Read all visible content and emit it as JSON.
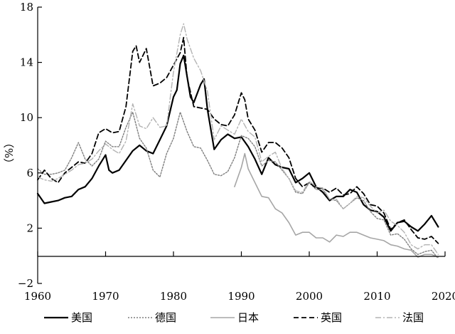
{
  "chart_data": {
    "type": "line",
    "title": "",
    "xlabel": "",
    "ylabel": "（%）",
    "xlim": [
      1960,
      2020
    ],
    "ylim": [
      -2,
      18
    ],
    "xticks": [
      "1960",
      "1970",
      "1980",
      "1990",
      "2000",
      "2010",
      "2020"
    ],
    "yticks": [
      "18",
      "14",
      "10",
      "6",
      "2",
      "−2"
    ],
    "grid": false,
    "legend_position": "bottom",
    "series": [
      {
        "name": "美国",
        "color": "#000000",
        "style": "solid",
        "width": 2.2,
        "points": [
          [
            1960,
            4.5
          ],
          [
            1961,
            3.8
          ],
          [
            1962,
            3.9
          ],
          [
            1963,
            4.0
          ],
          [
            1964,
            4.2
          ],
          [
            1965,
            4.3
          ],
          [
            1966,
            4.8
          ],
          [
            1967,
            5.0
          ],
          [
            1968,
            5.6
          ],
          [
            1969,
            6.5
          ],
          [
            1970,
            7.3
          ],
          [
            1970.5,
            6.2
          ],
          [
            1971,
            6.0
          ],
          [
            1972,
            6.2
          ],
          [
            1973,
            6.9
          ],
          [
            1974,
            7.6
          ],
          [
            1975,
            8.0
          ],
          [
            1976,
            7.6
          ],
          [
            1977,
            7.4
          ],
          [
            1978,
            8.4
          ],
          [
            1979,
            9.4
          ],
          [
            1980,
            11.5
          ],
          [
            1980.5,
            12.0
          ],
          [
            1981,
            13.9
          ],
          [
            1981.5,
            14.5
          ],
          [
            1982,
            13.0
          ],
          [
            1982.5,
            11.5
          ],
          [
            1983,
            11.1
          ],
          [
            1984,
            12.4
          ],
          [
            1984.5,
            12.8
          ],
          [
            1985,
            10.6
          ],
          [
            1986,
            7.7
          ],
          [
            1987,
            8.4
          ],
          [
            1988,
            8.8
          ],
          [
            1989,
            8.5
          ],
          [
            1990,
            8.6
          ],
          [
            1991,
            7.9
          ],
          [
            1992,
            7.0
          ],
          [
            1993,
            5.9
          ],
          [
            1994,
            7.1
          ],
          [
            1995,
            6.6
          ],
          [
            1996,
            6.4
          ],
          [
            1997,
            6.3
          ],
          [
            1998,
            5.3
          ],
          [
            1999,
            5.6
          ],
          [
            2000,
            6.0
          ],
          [
            2001,
            5.0
          ],
          [
            2002,
            4.6
          ],
          [
            2003,
            4.0
          ],
          [
            2004,
            4.3
          ],
          [
            2005,
            4.3
          ],
          [
            2006,
            4.8
          ],
          [
            2007,
            4.6
          ],
          [
            2008,
            3.7
          ],
          [
            2009,
            3.3
          ],
          [
            2010,
            3.2
          ],
          [
            2011,
            2.8
          ],
          [
            2012,
            1.8
          ],
          [
            2013,
            2.4
          ],
          [
            2014,
            2.5
          ],
          [
            2015,
            2.1
          ],
          [
            2016,
            1.8
          ],
          [
            2017,
            2.3
          ],
          [
            2018,
            2.9
          ],
          [
            2019,
            2.1
          ]
        ]
      },
      {
        "name": "德国",
        "color": "#7f7f7f",
        "style": "dotted",
        "width": 1.4,
        "points": [
          [
            1960,
            6.3
          ],
          [
            1961,
            5.9
          ],
          [
            1962,
            5.9
          ],
          [
            1963,
            6.0
          ],
          [
            1964,
            6.2
          ],
          [
            1965,
            7.1
          ],
          [
            1966,
            8.2
          ],
          [
            1967,
            7.0
          ],
          [
            1968,
            6.5
          ],
          [
            1969,
            7.0
          ],
          [
            1970,
            8.3
          ],
          [
            1971,
            7.9
          ],
          [
            1972,
            7.9
          ],
          [
            1973,
            9.3
          ],
          [
            1974,
            10.4
          ],
          [
            1975,
            8.5
          ],
          [
            1976,
            7.8
          ],
          [
            1977,
            6.2
          ],
          [
            1978,
            5.7
          ],
          [
            1979,
            7.4
          ],
          [
            1980,
            8.5
          ],
          [
            1981,
            10.4
          ],
          [
            1982,
            9.0
          ],
          [
            1983,
            7.9
          ],
          [
            1984,
            7.8
          ],
          [
            1985,
            6.9
          ],
          [
            1986,
            5.9
          ],
          [
            1987,
            5.8
          ],
          [
            1988,
            6.1
          ],
          [
            1989,
            7.1
          ],
          [
            1990,
            8.7
          ],
          [
            1991,
            8.5
          ],
          [
            1992,
            7.9
          ],
          [
            1993,
            6.5
          ],
          [
            1994,
            6.9
          ],
          [
            1995,
            6.8
          ],
          [
            1996,
            6.2
          ],
          [
            1997,
            5.6
          ],
          [
            1998,
            4.6
          ],
          [
            1999,
            4.5
          ],
          [
            2000,
            5.3
          ],
          [
            2001,
            4.8
          ],
          [
            2002,
            4.8
          ],
          [
            2003,
            4.1
          ],
          [
            2004,
            4.0
          ],
          [
            2005,
            3.4
          ],
          [
            2006,
            3.8
          ],
          [
            2007,
            4.2
          ],
          [
            2008,
            4.0
          ],
          [
            2009,
            3.2
          ],
          [
            2010,
            2.7
          ],
          [
            2011,
            2.6
          ],
          [
            2012,
            1.5
          ],
          [
            2013,
            1.6
          ],
          [
            2014,
            1.2
          ],
          [
            2015,
            0.5
          ],
          [
            2016,
            0.1
          ],
          [
            2017,
            0.3
          ],
          [
            2018,
            0.4
          ],
          [
            2019,
            -0.2
          ]
        ]
      },
      {
        "name": "日本",
        "color": "#a6a6a6",
        "style": "solid",
        "width": 1.6,
        "points": [
          [
            1989,
            5.0
          ],
          [
            1990,
            6.4
          ],
          [
            1990.5,
            7.4
          ],
          [
            1991,
            6.3
          ],
          [
            1992,
            5.3
          ],
          [
            1993,
            4.3
          ],
          [
            1994,
            4.2
          ],
          [
            1995,
            3.4
          ],
          [
            1996,
            3.1
          ],
          [
            1997,
            2.4
          ],
          [
            1998,
            1.5
          ],
          [
            1999,
            1.7
          ],
          [
            2000,
            1.7
          ],
          [
            2001,
            1.3
          ],
          [
            2002,
            1.3
          ],
          [
            2003,
            1.0
          ],
          [
            2004,
            1.5
          ],
          [
            2005,
            1.4
          ],
          [
            2006,
            1.7
          ],
          [
            2007,
            1.7
          ],
          [
            2008,
            1.5
          ],
          [
            2009,
            1.3
          ],
          [
            2010,
            1.2
          ],
          [
            2011,
            1.1
          ],
          [
            2012,
            0.8
          ],
          [
            2013,
            0.7
          ],
          [
            2014,
            0.5
          ],
          [
            2015,
            0.4
          ],
          [
            2016,
            -0.1
          ],
          [
            2017,
            0.1
          ],
          [
            2018,
            0.1
          ],
          [
            2019,
            -0.1
          ]
        ]
      },
      {
        "name": "英国",
        "color": "#000000",
        "style": "dashed",
        "width": 1.8,
        "points": [
          [
            1960,
            5.5
          ],
          [
            1961,
            6.2
          ],
          [
            1962,
            5.6
          ],
          [
            1963,
            5.3
          ],
          [
            1964,
            6.0
          ],
          [
            1965,
            6.4
          ],
          [
            1966,
            6.8
          ],
          [
            1967,
            6.7
          ],
          [
            1968,
            7.4
          ],
          [
            1969,
            8.9
          ],
          [
            1970,
            9.2
          ],
          [
            1971,
            8.9
          ],
          [
            1972,
            9.0
          ],
          [
            1973,
            10.8
          ],
          [
            1974,
            14.8
          ],
          [
            1974.5,
            15.2
          ],
          [
            1975,
            14.0
          ],
          [
            1976,
            15.0
          ],
          [
            1977,
            12.3
          ],
          [
            1978,
            12.5
          ],
          [
            1979,
            12.9
          ],
          [
            1980,
            13.8
          ],
          [
            1981,
            14.7
          ],
          [
            1981.5,
            15.8
          ],
          [
            1982,
            12.9
          ],
          [
            1983,
            10.8
          ],
          [
            1984,
            10.7
          ],
          [
            1985,
            10.6
          ],
          [
            1986,
            9.9
          ],
          [
            1987,
            9.5
          ],
          [
            1988,
            9.4
          ],
          [
            1989,
            10.2
          ],
          [
            1990,
            11.8
          ],
          [
            1990.5,
            11.3
          ],
          [
            1991,
            9.9
          ],
          [
            1992,
            9.1
          ],
          [
            1993,
            7.5
          ],
          [
            1994,
            8.2
          ],
          [
            1995,
            8.2
          ],
          [
            1996,
            7.8
          ],
          [
            1997,
            7.1
          ],
          [
            1998,
            5.6
          ],
          [
            1999,
            5.0
          ],
          [
            2000,
            5.3
          ],
          [
            2001,
            4.9
          ],
          [
            2002,
            4.9
          ],
          [
            2003,
            4.6
          ],
          [
            2004,
            4.9
          ],
          [
            2005,
            4.4
          ],
          [
            2006,
            4.5
          ],
          [
            2007,
            5.0
          ],
          [
            2008,
            4.5
          ],
          [
            2009,
            3.7
          ],
          [
            2010,
            3.6
          ],
          [
            2011,
            3.1
          ],
          [
            2012,
            1.9
          ],
          [
            2013,
            2.4
          ],
          [
            2014,
            2.6
          ],
          [
            2015,
            1.9
          ],
          [
            2016,
            1.3
          ],
          [
            2017,
            1.2
          ],
          [
            2018,
            1.4
          ],
          [
            2019,
            0.9
          ]
        ]
      },
      {
        "name": "法国",
        "color": "#b3b3b3",
        "style": "dashdot",
        "width": 1.4,
        "points": [
          [
            1960,
            5.7
          ],
          [
            1961,
            5.5
          ],
          [
            1962,
            5.4
          ],
          [
            1963,
            5.6
          ],
          [
            1964,
            5.9
          ],
          [
            1965,
            6.2
          ],
          [
            1966,
            6.6
          ],
          [
            1967,
            6.7
          ],
          [
            1968,
            7.0
          ],
          [
            1969,
            7.6
          ],
          [
            1970,
            8.1
          ],
          [
            1971,
            7.7
          ],
          [
            1972,
            7.4
          ],
          [
            1973,
            8.3
          ],
          [
            1974,
            11.0
          ],
          [
            1975,
            9.4
          ],
          [
            1976,
            9.2
          ],
          [
            1977,
            10.0
          ],
          [
            1978,
            9.3
          ],
          [
            1979,
            9.4
          ],
          [
            1980,
            13.3
          ],
          [
            1981,
            16.0
          ],
          [
            1981.5,
            16.8
          ],
          [
            1982,
            15.7
          ],
          [
            1983,
            14.3
          ],
          [
            1984,
            13.4
          ],
          [
            1985,
            11.9
          ],
          [
            1986,
            8.4
          ],
          [
            1987,
            9.4
          ],
          [
            1988,
            9.1
          ],
          [
            1989,
            8.8
          ],
          [
            1990,
            9.9
          ],
          [
            1991,
            9.0
          ],
          [
            1992,
            8.6
          ],
          [
            1993,
            6.8
          ],
          [
            1994,
            7.2
          ],
          [
            1995,
            7.5
          ],
          [
            1996,
            6.3
          ],
          [
            1997,
            5.6
          ],
          [
            1998,
            4.7
          ],
          [
            1999,
            4.6
          ],
          [
            2000,
            5.4
          ],
          [
            2001,
            5.0
          ],
          [
            2002,
            4.9
          ],
          [
            2003,
            4.1
          ],
          [
            2004,
            4.1
          ],
          [
            2005,
            3.4
          ],
          [
            2006,
            3.8
          ],
          [
            2007,
            4.3
          ],
          [
            2008,
            4.2
          ],
          [
            2009,
            3.6
          ],
          [
            2010,
            3.1
          ],
          [
            2011,
            3.3
          ],
          [
            2012,
            2.5
          ],
          [
            2013,
            2.2
          ],
          [
            2014,
            1.7
          ],
          [
            2015,
            0.8
          ],
          [
            2016,
            0.5
          ],
          [
            2017,
            0.8
          ],
          [
            2018,
            0.8
          ],
          [
            2019,
            0.1
          ]
        ]
      }
    ]
  }
}
